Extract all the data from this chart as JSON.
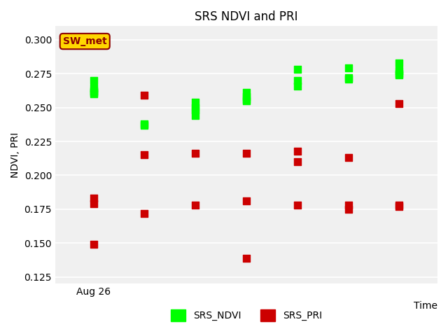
{
  "title": "SRS NDVI and PRI",
  "xlabel": "Time",
  "ylabel": "NDVI, PRI",
  "ylim": [
    0.12,
    0.31
  ],
  "annotation": "SW_met",
  "background_color": "#ffffff",
  "ax_facecolor": "#f0f0f0",
  "ndvi_color": "#00ff00",
  "pri_color": "#cc0000",
  "ndvi_x": [
    1,
    1,
    1,
    1,
    1,
    3,
    3,
    5,
    5,
    5,
    5,
    7,
    7,
    7,
    7,
    9,
    9,
    9,
    11,
    11,
    11,
    13,
    13,
    13,
    13
  ],
  "ndvi_y": [
    0.27,
    0.264,
    0.262,
    0.261,
    0.26,
    0.238,
    0.237,
    0.254,
    0.25,
    0.248,
    0.244,
    0.261,
    0.258,
    0.256,
    0.255,
    0.278,
    0.27,
    0.266,
    0.279,
    0.272,
    0.271,
    0.283,
    0.277,
    0.275,
    0.274
  ],
  "pri_x": [
    1,
    1,
    1,
    3,
    3,
    3,
    5,
    5,
    7,
    7,
    7,
    9,
    9,
    9,
    11,
    11,
    11,
    13,
    13,
    13
  ],
  "pri_y": [
    0.183,
    0.179,
    0.149,
    0.259,
    0.215,
    0.172,
    0.216,
    0.178,
    0.216,
    0.181,
    0.139,
    0.218,
    0.21,
    0.178,
    0.213,
    0.178,
    0.175,
    0.253,
    0.178,
    0.177
  ],
  "tick_positions": [
    1
  ],
  "tick_labels": [
    "Aug 26"
  ],
  "marker_size": 50,
  "grid_color": "#ffffff",
  "legend_ndvi": "SRS_NDVI",
  "legend_pri": "SRS_PRI"
}
